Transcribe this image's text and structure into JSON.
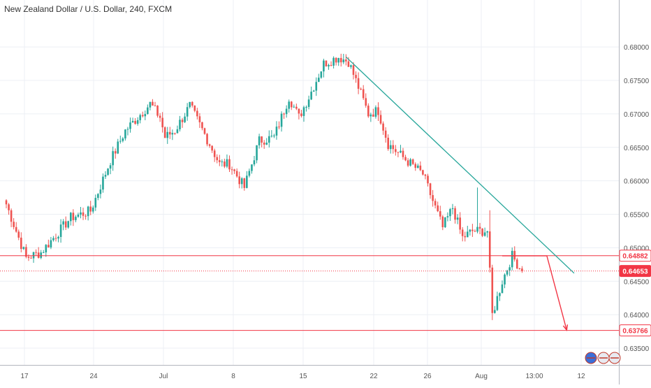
{
  "header": {
    "title": "New Zealand Dollar / U.S. Dollar, 240, FXCM"
  },
  "colors": {
    "up": "#26a69a",
    "down": "#ef5350",
    "trendline": "#26a69a",
    "level": "#f23645",
    "arrow": "#f23645",
    "grid": "#eceff4",
    "axis": "#555555"
  },
  "chart_data": {
    "type": "candlestick",
    "title": "New Zealand Dollar / U.S. Dollar, 240, FXCM",
    "xlabel": "",
    "ylabel": "",
    "ylim": [
      0.6325,
      0.6845
    ],
    "grid": true,
    "legend": "none",
    "x_ticks": [
      "17",
      "24",
      "Jul",
      "8",
      "15",
      "22",
      "26",
      "Aug",
      "13:00",
      "12"
    ],
    "y_ticks": [
      "0.68000",
      "0.67500",
      "0.67000",
      "0.66500",
      "0.66000",
      "0.65500",
      "0.65000",
      "0.64500",
      "0.64000",
      "0.63500"
    ],
    "y_tick_values": [
      0.68,
      0.675,
      0.67,
      0.665,
      0.66,
      0.655,
      0.65,
      0.645,
      0.64,
      0.635
    ],
    "price_labels": [
      {
        "text": "0.64882",
        "value": 0.64882,
        "style": "solid"
      },
      {
        "text": "0.64653",
        "value": 0.64653,
        "style": "dotted"
      },
      {
        "text": "0.63766",
        "value": 0.63766,
        "style": "solid"
      }
    ],
    "horizontal_levels": [
      0.64882,
      0.63766
    ],
    "trendline": {
      "from": {
        "bar": 137,
        "value": 0.6785
      },
      "to": {
        "bar": 229,
        "value": 0.6462
      }
    },
    "projection_arrow": {
      "path": [
        {
          "bar": 200,
          "value": 0.6488
        },
        {
          "bar": 218,
          "value": 0.6488
        },
        {
          "bar": 226,
          "value": 0.6377
        }
      ]
    },
    "price_path": [
      [
        0,
        0.6565
      ],
      [
        8,
        0.6485
      ],
      [
        14,
        0.6493
      ],
      [
        26,
        0.6545
      ],
      [
        34,
        0.6555
      ],
      [
        42,
        0.663
      ],
      [
        48,
        0.6675
      ],
      [
        58,
        0.6715
      ],
      [
        62,
        0.6695
      ],
      [
        64,
        0.6665
      ],
      [
        68,
        0.6675
      ],
      [
        74,
        0.6712
      ],
      [
        82,
        0.6655
      ],
      [
        86,
        0.6625
      ],
      [
        90,
        0.6625
      ],
      [
        96,
        0.659
      ],
      [
        102,
        0.666
      ],
      [
        108,
        0.6665
      ],
      [
        114,
        0.6725
      ],
      [
        118,
        0.6695
      ],
      [
        122,
        0.6725
      ],
      [
        128,
        0.6775
      ],
      [
        134,
        0.6785
      ],
      [
        138,
        0.6778
      ],
      [
        142,
        0.674
      ],
      [
        146,
        0.67
      ],
      [
        150,
        0.6705
      ],
      [
        154,
        0.6655
      ],
      [
        160,
        0.6635
      ],
      [
        168,
        0.661
      ],
      [
        176,
        0.653
      ],
      [
        180,
        0.656
      ],
      [
        184,
        0.6515
      ],
      [
        188,
        0.6525
      ],
      [
        194,
        0.6525
      ],
      [
        196,
        0.64
      ],
      [
        200,
        0.645
      ],
      [
        204,
        0.6488
      ],
      [
        208,
        0.6465
      ]
    ]
  }
}
